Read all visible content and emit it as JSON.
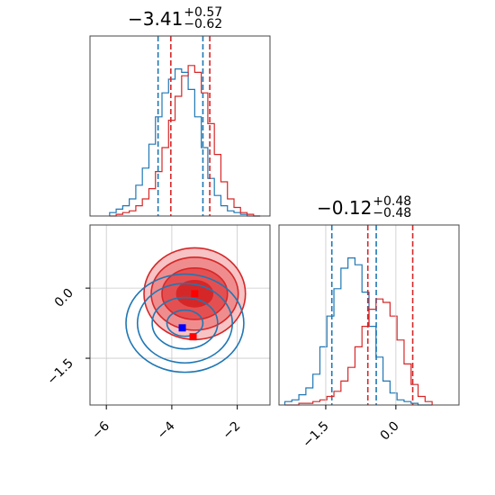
{
  "titles": {
    "param_x": {
      "main": "−3.41",
      "plus": "+0.57",
      "minus": "−0.62"
    },
    "param_y": {
      "main": "−0.12",
      "plus": "+0.48",
      "minus": "−0.48"
    }
  },
  "colors": {
    "blue": "#1f77b4",
    "red": "#d62728",
    "grid": "#c8c8c8",
    "marker_blue": "#0000ff",
    "marker_red": "#ff0000"
  },
  "chart_data": [
    {
      "type": "histogram",
      "panel": "top-left marginal (x parameter)",
      "title": "−3.41 +0.57 −0.62",
      "xlim": [
        -6.5,
        -1.0
      ],
      "series": [
        {
          "name": "",
          "color": "blue",
          "bins_x": [
            -5.8,
            -5.6,
            -5.4,
            -5.2,
            -5.0,
            -4.8,
            -4.6,
            -4.4,
            -4.2,
            -4.0,
            -3.8,
            -3.6,
            -3.4,
            -3.2,
            -3.0,
            -2.8,
            -2.6,
            -2.4,
            -2.2,
            -2.0,
            -1.8,
            -1.6,
            -1.4
          ],
          "heights": [
            0.02,
            0.04,
            0.06,
            0.1,
            0.18,
            0.28,
            0.42,
            0.58,
            0.72,
            0.8,
            0.86,
            0.84,
            0.74,
            0.58,
            0.4,
            0.22,
            0.12,
            0.06,
            0.03,
            0.02,
            0.01,
            0.0,
            0.0
          ],
          "quantiles": [
            -4.42,
            -3.05
          ]
        },
        {
          "name": "",
          "color": "red",
          "bins_x": [
            -5.8,
            -5.6,
            -5.4,
            -5.2,
            -5.0,
            -4.8,
            -4.6,
            -4.4,
            -4.2,
            -4.0,
            -3.8,
            -3.6,
            -3.4,
            -3.2,
            -3.0,
            -2.8,
            -2.6,
            -2.4,
            -2.2,
            -2.0,
            -1.8,
            -1.6,
            -1.4
          ],
          "heights": [
            0.0,
            0.01,
            0.02,
            0.03,
            0.06,
            0.1,
            0.16,
            0.26,
            0.4,
            0.56,
            0.7,
            0.82,
            0.88,
            0.84,
            0.72,
            0.54,
            0.36,
            0.2,
            0.1,
            0.05,
            0.02,
            0.01,
            0.0
          ],
          "quantiles": [
            -4.03,
            -2.84
          ]
        }
      ]
    },
    {
      "type": "contour",
      "panel": "bottom-left joint",
      "xlim": [
        -6.5,
        -1.0
      ],
      "ylim": [
        -2.5,
        1.35
      ],
      "xticks": [
        "−6",
        "−4",
        "−2"
      ],
      "xtick_values": [
        -6,
        -4,
        -2
      ],
      "yticks": [
        "0.0",
        "−1.5"
      ],
      "ytick_values": [
        0.0,
        -1.5
      ],
      "series": [
        {
          "name": "",
          "color": "red",
          "center": [
            -3.3,
            -0.12
          ],
          "radii": [
            [
              0.55,
              0.28
            ],
            [
              1.0,
              0.55
            ],
            [
              1.33,
              0.78
            ],
            [
              1.55,
              0.98
            ]
          ],
          "filled": true
        },
        {
          "name": "",
          "color": "blue",
          "center": [
            -3.6,
            -0.75
          ],
          "radii": [
            [
              0.55,
              0.28
            ],
            [
              1.0,
              0.55
            ],
            [
              1.45,
              0.85
            ],
            [
              1.8,
              1.05
            ]
          ],
          "filled": false
        }
      ],
      "markers": [
        {
          "color": "marker_red",
          "x": -3.3,
          "y": -0.12
        },
        {
          "color": "marker_red",
          "x": -3.35,
          "y": -1.04
        },
        {
          "color": "marker_blue",
          "x": -3.68,
          "y": -0.85
        }
      ]
    },
    {
      "type": "histogram",
      "panel": "bottom-right marginal (y parameter)",
      "title": "−0.12 +0.48 −0.48",
      "xlim": [
        -2.5,
        1.35
      ],
      "xticks": [
        "−1.5",
        "0.0"
      ],
      "xtick_values": [
        -1.5,
        0.0
      ],
      "series": [
        {
          "name": "",
          "color": "blue",
          "bins_x": [
            -2.3,
            -2.15,
            -2.0,
            -1.85,
            -1.7,
            -1.55,
            -1.4,
            -1.25,
            -1.1,
            -0.95,
            -0.8,
            -0.65,
            -0.5,
            -0.35,
            -0.2,
            -0.05,
            0.1,
            0.25,
            0.4,
            0.55,
            0.7
          ],
          "heights": [
            0.02,
            0.03,
            0.06,
            0.1,
            0.18,
            0.34,
            0.52,
            0.68,
            0.8,
            0.86,
            0.82,
            0.66,
            0.46,
            0.28,
            0.14,
            0.07,
            0.03,
            0.02,
            0.01,
            0.0,
            0.0
          ],
          "quantiles": [
            -1.37,
            -0.42
          ]
        },
        {
          "name": "",
          "color": "red",
          "bins_x": [
            -2.3,
            -2.15,
            -2.0,
            -1.85,
            -1.7,
            -1.55,
            -1.4,
            -1.25,
            -1.1,
            -0.95,
            -0.8,
            -0.65,
            -0.5,
            -0.35,
            -0.2,
            -0.05,
            0.1,
            0.25,
            0.4,
            0.55,
            0.7
          ],
          "heights": [
            0.0,
            0.0,
            0.01,
            0.01,
            0.02,
            0.03,
            0.05,
            0.08,
            0.14,
            0.22,
            0.34,
            0.46,
            0.56,
            0.62,
            0.6,
            0.52,
            0.38,
            0.24,
            0.12,
            0.05,
            0.02
          ],
          "quantiles": [
            -0.6,
            0.36
          ]
        }
      ]
    }
  ]
}
